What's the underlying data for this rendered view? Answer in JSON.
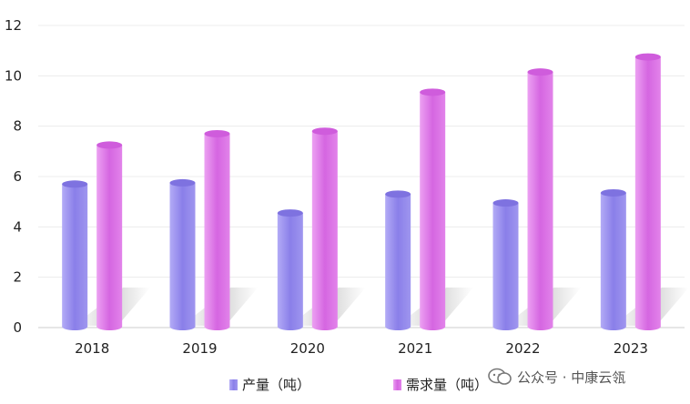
{
  "chart_data": {
    "type": "bar",
    "title": "",
    "xlabel": "",
    "ylabel": "",
    "categories": [
      "2018",
      "2019",
      "2020",
      "2021",
      "2022",
      "2023"
    ],
    "ylim": [
      0,
      12
    ],
    "yticks": [
      0,
      2,
      4,
      6,
      8,
      10,
      12
    ],
    "grid": true,
    "legend_placement": "bottom",
    "series": [
      {
        "name": "产量（吨）",
        "values": [
          5.7,
          5.75,
          4.55,
          5.3,
          4.95,
          5.35
        ],
        "color": "#9a8ff0"
      },
      {
        "name": "需求量（吨）",
        "values": [
          7.25,
          7.7,
          7.8,
          9.35,
          10.15,
          10.75
        ],
        "color": "#dd74e6"
      }
    ]
  },
  "watermark": {
    "text": "公众号 · 中康云瓴",
    "icon": "wechat-logo-icon"
  }
}
